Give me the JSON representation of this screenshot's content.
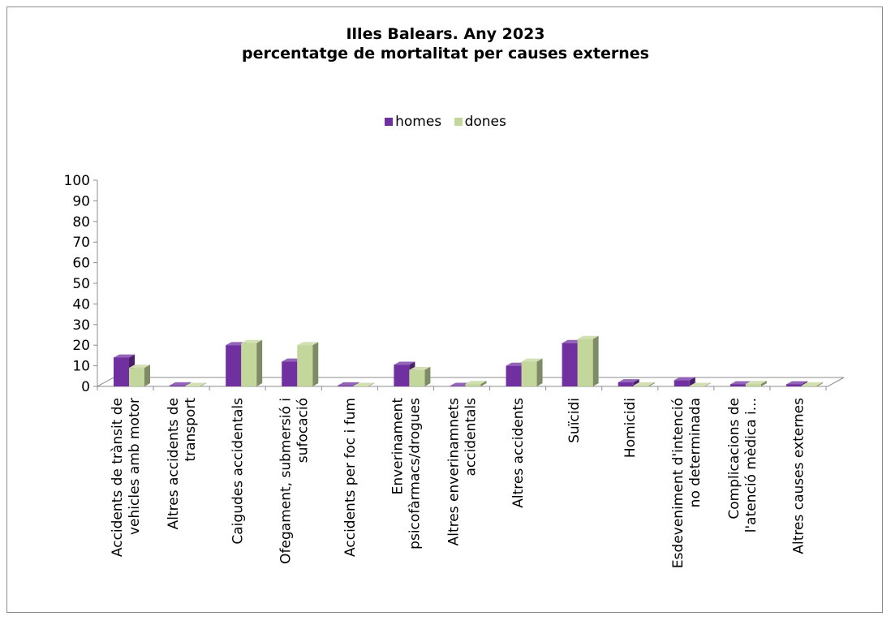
{
  "chart_data": {
    "type": "bar",
    "title": "Illes Balears. Any 2023",
    "subtitle": "percentatge de mortalitat per causes externes",
    "xlabel": "",
    "ylabel": "",
    "ylim": [
      0,
      100
    ],
    "yticks": [
      "0",
      "10",
      "20",
      "30",
      "40",
      "50",
      "60",
      "70",
      "80",
      "90",
      "100"
    ],
    "legend_position": "top",
    "grid": false,
    "categories": [
      [
        "Accidents de trànsit de",
        "vehicles amb motor"
      ],
      [
        "Altres accidents de",
        "transport"
      ],
      [
        "Caigudes accidentals"
      ],
      [
        "Ofegament, submersió i",
        "sufocació"
      ],
      [
        "Accidents per foc i fum"
      ],
      [
        "Enverinament",
        "psicofàrmacs/drogues"
      ],
      [
        "Altres enverinamnets",
        "accidentals"
      ],
      [
        "Altres accidents"
      ],
      [
        "Suïcidi"
      ],
      [
        "Homicidi"
      ],
      [
        "Esdeveniment d'intenció",
        "no determinada"
      ],
      [
        "Complicacions de",
        "l'atenció mèdica i..."
      ],
      [
        "Altres causes externes"
      ]
    ],
    "series": [
      {
        "name": "homes",
        "color": "#7030a0",
        "values": [
          14,
          0.5,
          20,
          12,
          0.5,
          10.5,
          0.2,
          10,
          21,
          2,
          3,
          1,
          1
        ]
      },
      {
        "name": "dones",
        "color": "#c3d69b",
        "values": [
          9,
          0.2,
          21,
          20,
          0.2,
          8,
          1.2,
          12,
          23,
          0.5,
          0.2,
          1.2,
          0.5
        ]
      }
    ]
  }
}
